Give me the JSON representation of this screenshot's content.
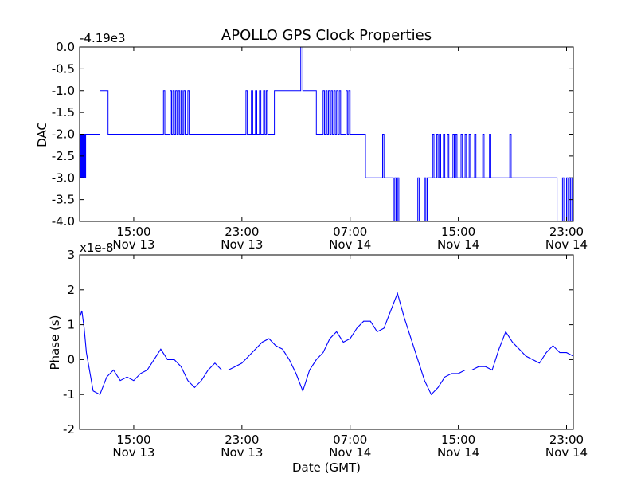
{
  "figure": {
    "title": "APOLLO GPS Clock Properties"
  },
  "chart_data": [
    {
      "type": "line",
      "title": "APOLLO GPS Clock Properties",
      "xlabel": "",
      "ylabel": "DAC",
      "offset_text": "-4.19e3",
      "xlim": [
        "2013-11-13 11:00",
        "2013-11-14 23:30"
      ],
      "ylim": [
        -4.0,
        0.0
      ],
      "x_ticks": [
        {
          "x": "2013-11-13 15:00",
          "time": "15:00",
          "date": "Nov 13"
        },
        {
          "x": "2013-11-13 23:00",
          "time": "23:00",
          "date": "Nov 13"
        },
        {
          "x": "2013-11-14 07:00",
          "time": "07:00",
          "date": "Nov 14"
        },
        {
          "x": "2013-11-14 15:00",
          "time": "15:00",
          "date": "Nov 14"
        },
        {
          "x": "2013-11-14 23:00",
          "time": "23:00",
          "date": "Nov 14"
        }
      ],
      "y_ticks": [
        {
          "y": 0.0,
          "label": "0.0"
        },
        {
          "y": -0.5,
          "label": "-0.5"
        },
        {
          "y": -1.0,
          "label": "-1.0"
        },
        {
          "y": -1.5,
          "label": "-1.5"
        },
        {
          "y": -2.0,
          "label": "-2.0"
        },
        {
          "y": -2.5,
          "label": "-2.5"
        },
        {
          "y": -3.0,
          "label": "-3.0"
        },
        {
          "y": -3.5,
          "label": "-3.5"
        },
        {
          "y": -4.0,
          "label": "-4.0"
        }
      ],
      "grid": false,
      "color": "#0000ff",
      "series": [
        {
          "x": [
            "2013-11-13 11:00",
            "2013-11-13 11:03",
            "2013-11-13 11:06",
            "2013-11-13 11:09",
            "2013-11-13 11:12",
            "2013-11-13 11:15",
            "2013-11-13 11:18",
            "2013-11-13 11:21",
            "2013-11-13 11:24",
            "2013-11-13 11:27",
            "2013-11-13 11:36",
            "2013-11-13 11:40",
            "2013-11-13 11:45",
            "2013-11-13 11:48",
            "2013-11-13 11:52",
            "2013-11-13 11:55",
            "2013-11-13 12:00",
            "2013-11-13 12:30",
            "2013-11-13 12:36",
            "2013-11-13 12:54",
            "2013-11-13 13:02",
            "2013-11-13 13:06",
            "2013-11-13 17:12",
            "2013-11-13 17:18",
            "2013-11-13 17:42",
            "2013-11-13 17:48",
            "2013-11-13 17:54",
            "2013-11-13 18:00",
            "2013-11-13 18:06",
            "2013-11-13 18:12",
            "2013-11-13 18:18",
            "2013-11-13 18:24",
            "2013-11-13 18:30",
            "2013-11-13 18:36",
            "2013-11-13 18:42",
            "2013-11-13 18:48",
            "2013-11-13 19:00",
            "2013-11-13 19:06",
            "2013-11-13 23:18",
            "2013-11-13 23:24",
            "2013-11-13 23:42",
            "2013-11-13 23:48",
            "2013-11-14 00:00",
            "2013-11-14 00:06",
            "2013-11-14 00:18",
            "2013-11-14 00:24",
            "2013-11-14 00:36",
            "2013-11-14 00:42",
            "2013-11-14 00:48",
            "2013-11-14 00:54",
            "2013-11-14 01:24",
            "2013-11-14 01:30",
            "2013-11-14 02:00",
            "2013-11-14 02:06",
            "2013-11-14 02:24",
            "2013-11-14 02:30",
            "2013-11-14 03:18",
            "2013-11-14 03:21",
            "2013-11-14 03:30",
            "2013-11-14 03:33",
            "2013-11-14 04:24",
            "2013-11-14 04:30",
            "2013-11-14 05:00",
            "2013-11-14 05:06",
            "2013-11-14 05:12",
            "2013-11-14 05:18",
            "2013-11-14 05:24",
            "2013-11-14 05:30",
            "2013-11-14 05:36",
            "2013-11-14 05:42",
            "2013-11-14 05:48",
            "2013-11-14 05:54",
            "2013-11-14 06:00",
            "2013-11-14 06:06",
            "2013-11-14 06:12",
            "2013-11-14 06:18",
            "2013-11-14 06:42",
            "2013-11-14 06:48",
            "2013-11-14 06:54",
            "2013-11-14 07:00",
            "2013-11-14 07:54",
            "2013-11-14 08:00",
            "2013-11-14 08:05",
            "2013-11-14 08:08",
            "2013-11-14 09:00",
            "2013-11-14 09:12",
            "2013-11-14 09:24",
            "2013-11-14 09:30",
            "2013-11-14 09:54",
            "2013-11-14 10:00",
            "2013-11-14 10:06",
            "2013-11-14 10:12",
            "2013-11-14 10:18",
            "2013-11-14 10:24",
            "2013-11-14 10:30",
            "2013-11-14 10:36",
            "2013-11-14 12:00",
            "2013-11-14 12:06",
            "2013-11-14 12:30",
            "2013-11-14 12:36",
            "2013-11-14 12:42",
            "2013-11-14 12:48",
            "2013-11-14 13:06",
            "2013-11-14 13:12",
            "2013-11-14 13:24",
            "2013-11-14 13:30",
            "2013-11-14 13:36",
            "2013-11-14 13:42",
            "2013-11-14 13:54",
            "2013-11-14 14:00",
            "2013-11-14 14:12",
            "2013-11-14 14:18",
            "2013-11-14 14:36",
            "2013-11-14 14:42",
            "2013-11-14 14:48",
            "2013-11-14 14:54",
            "2013-11-14 15:12",
            "2013-11-14 15:18",
            "2013-11-14 15:30",
            "2013-11-14 15:36",
            "2013-11-14 15:48",
            "2013-11-14 15:54",
            "2013-11-14 16:12",
            "2013-11-14 16:18",
            "2013-11-14 16:48",
            "2013-11-14 16:54",
            "2013-11-14 17:18",
            "2013-11-14 17:24",
            "2013-11-14 18:48",
            "2013-11-14 18:54",
            "2013-11-14 22:12",
            "2013-11-14 22:18",
            "2013-11-14 22:42",
            "2013-11-14 22:48",
            "2013-11-14 23:00",
            "2013-11-14 23:06",
            "2013-11-14 23:12",
            "2013-11-14 23:18",
            "2013-11-14 23:24",
            "2013-11-14 23:30"
          ],
          "values": [
            -3.0,
            -2.0,
            -3.0,
            -2.0,
            -3.0,
            -2.0,
            -3.0,
            -2.0,
            -3.0,
            -2.0,
            -2.0,
            -2.0,
            -2.0,
            -2.0,
            -2.0,
            -2.0,
            -2.0,
            -1.0,
            -1.0,
            -1.0,
            -1.0,
            -2.0,
            -1.0,
            -2.0,
            -1.0,
            -2.0,
            -1.0,
            -2.0,
            -1.0,
            -2.0,
            -1.0,
            -2.0,
            -1.0,
            -2.0,
            -1.0,
            -2.0,
            -1.0,
            -2.0,
            -1.0,
            -2.0,
            -1.0,
            -2.0,
            -1.0,
            -2.0,
            -1.0,
            -2.0,
            -1.0,
            -2.0,
            -1.0,
            -2.0,
            -1.0,
            -1.0,
            -1.0,
            -1.0,
            -1.0,
            -1.0,
            -1.0,
            0.0,
            -1.0,
            -1.0,
            -1.0,
            -2.0,
            -1.0,
            -2.0,
            -1.0,
            -2.0,
            -1.0,
            -2.0,
            -1.0,
            -2.0,
            -1.0,
            -2.0,
            -1.0,
            -2.0,
            -1.0,
            -2.0,
            -1.0,
            -2.0,
            -1.0,
            -2.0,
            -2.0,
            -2.0,
            -2.0,
            -3.0,
            -3.0,
            -3.0,
            -2.0,
            -3.0,
            -3.0,
            -3.0,
            -3.0,
            -4.0,
            -3.0,
            -4.0,
            -3.0,
            -4.0,
            -3.0,
            -4.0,
            -3.0,
            -4.0,
            -3.0,
            -3.0,
            -2.0,
            -3.0,
            -2.0,
            -3.0,
            -2.0,
            -3.0,
            -2.0,
            -3.0,
            -2.0,
            -3.0,
            -2.0,
            -3.0,
            -2.0,
            -3.0,
            -2.0,
            -3.0,
            -2.0,
            -3.0,
            -2.0,
            -3.0,
            -2.0,
            -3.0,
            -2.0,
            -3.0,
            -2.0,
            -3.0,
            -2.0,
            -3.0,
            -3.0,
            -4.0,
            -3.0,
            -4.0,
            -3.0,
            -4.0,
            -3.0,
            -4.0,
            -3.0,
            -4.0
          ]
        }
      ]
    },
    {
      "type": "line",
      "title": "",
      "xlabel": "Date (GMT)",
      "ylabel": "Phase (s)",
      "offset_text": "x1e-8",
      "xlim": [
        "2013-11-13 11:00",
        "2013-11-14 23:30"
      ],
      "ylim": [
        -2,
        3
      ],
      "x_ticks": [
        {
          "x": "2013-11-13 15:00",
          "time": "15:00",
          "date": "Nov 13"
        },
        {
          "x": "2013-11-13 23:00",
          "time": "23:00",
          "date": "Nov 13"
        },
        {
          "x": "2013-11-14 07:00",
          "time": "07:00",
          "date": "Nov 14"
        },
        {
          "x": "2013-11-14 15:00",
          "time": "15:00",
          "date": "Nov 14"
        },
        {
          "x": "2013-11-14 23:00",
          "time": "23:00",
          "date": "Nov 14"
        }
      ],
      "y_ticks": [
        {
          "y": 3,
          "label": "3"
        },
        {
          "y": 2,
          "label": "2"
        },
        {
          "y": 1,
          "label": "1"
        },
        {
          "y": 0,
          "label": "0"
        },
        {
          "y": -1,
          "label": "-1"
        },
        {
          "y": -2,
          "label": "-2"
        }
      ],
      "grid": false,
      "color": "#0000ff",
      "series": [
        {
          "x": [
            "2013-11-13 11:00",
            "2013-11-13 11:10",
            "2013-11-13 11:20",
            "2013-11-13 11:30",
            "2013-11-13 12:00",
            "2013-11-13 12:30",
            "2013-11-13 13:00",
            "2013-11-13 13:30",
            "2013-11-13 14:00",
            "2013-11-13 14:30",
            "2013-11-13 15:00",
            "2013-11-13 15:30",
            "2013-11-13 16:00",
            "2013-11-13 16:30",
            "2013-11-13 17:00",
            "2013-11-13 17:30",
            "2013-11-13 18:00",
            "2013-11-13 18:30",
            "2013-11-13 19:00",
            "2013-11-13 19:30",
            "2013-11-13 20:00",
            "2013-11-13 20:30",
            "2013-11-13 21:00",
            "2013-11-13 21:30",
            "2013-11-13 22:00",
            "2013-11-13 22:30",
            "2013-11-13 23:00",
            "2013-11-13 23:30",
            "2013-11-14 00:00",
            "2013-11-14 00:30",
            "2013-11-14 01:00",
            "2013-11-14 01:30",
            "2013-11-14 02:00",
            "2013-11-14 02:30",
            "2013-11-14 03:00",
            "2013-11-14 03:30",
            "2013-11-14 04:00",
            "2013-11-14 04:30",
            "2013-11-14 05:00",
            "2013-11-14 05:30",
            "2013-11-14 06:00",
            "2013-11-14 06:30",
            "2013-11-14 07:00",
            "2013-11-14 07:30",
            "2013-11-14 08:00",
            "2013-11-14 08:30",
            "2013-11-14 09:00",
            "2013-11-14 09:30",
            "2013-11-14 10:00",
            "2013-11-14 10:30",
            "2013-11-14 11:00",
            "2013-11-14 11:30",
            "2013-11-14 12:00",
            "2013-11-14 12:30",
            "2013-11-14 13:00",
            "2013-11-14 13:30",
            "2013-11-14 14:00",
            "2013-11-14 14:30",
            "2013-11-14 15:00",
            "2013-11-14 15:30",
            "2013-11-14 16:00",
            "2013-11-14 16:30",
            "2013-11-14 17:00",
            "2013-11-14 17:30",
            "2013-11-14 18:00",
            "2013-11-14 18:30",
            "2013-11-14 19:00",
            "2013-11-14 19:30",
            "2013-11-14 20:00",
            "2013-11-14 20:30",
            "2013-11-14 21:00",
            "2013-11-14 21:30",
            "2013-11-14 22:00",
            "2013-11-14 22:30",
            "2013-11-14 23:00",
            "2013-11-14 23:30"
          ],
          "values": [
            1.2,
            1.4,
            0.9,
            0.2,
            -0.9,
            -1.0,
            -0.5,
            -0.3,
            -0.6,
            -0.5,
            -0.6,
            -0.4,
            -0.3,
            0.0,
            0.3,
            0.0,
            0.0,
            -0.2,
            -0.6,
            -0.8,
            -0.6,
            -0.3,
            -0.1,
            -0.3,
            -0.3,
            -0.2,
            -0.1,
            0.1,
            0.3,
            0.5,
            0.6,
            0.4,
            0.3,
            0.0,
            -0.4,
            -0.9,
            -0.3,
            0.0,
            0.2,
            0.6,
            0.8,
            0.5,
            0.6,
            0.9,
            1.1,
            1.1,
            0.8,
            0.9,
            1.4,
            1.9,
            1.2,
            0.6,
            0.0,
            -0.6,
            -1.0,
            -0.8,
            -0.5,
            -0.4,
            -0.4,
            -0.3,
            -0.3,
            -0.2,
            -0.2,
            -0.3,
            0.3,
            0.8,
            0.5,
            0.3,
            0.1,
            0.0,
            -0.1,
            0.2,
            0.4,
            0.2,
            0.2,
            0.1
          ]
        }
      ]
    }
  ]
}
